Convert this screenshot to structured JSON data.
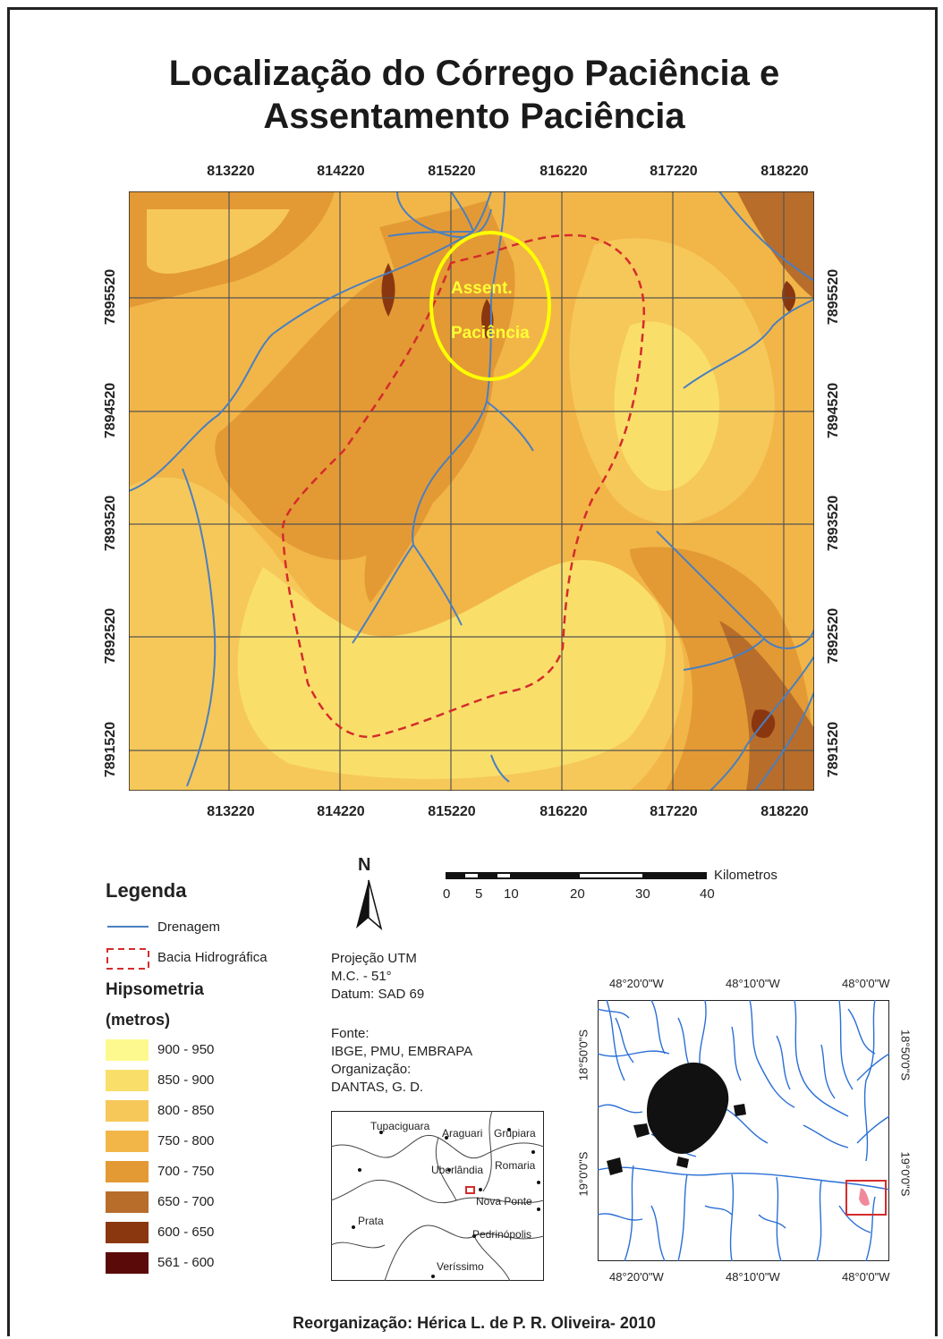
{
  "title_line1": "Localização do Córrego Paciência e",
  "title_line2": "Assentamento Paciência",
  "easting_labels": [
    "813220",
    "814220",
    "815220",
    "816220",
    "817220",
    "818220"
  ],
  "northing_labels": [
    "7895520",
    "7894520",
    "7893520",
    "7892520",
    "7891520"
  ],
  "map_labels": {
    "assent": "Assent.",
    "paciencia": "Paciência"
  },
  "north_arrow": {
    "letter": "N"
  },
  "scale_bar": {
    "unit": "Kilometros",
    "ticks": [
      "0",
      "5",
      "10",
      "20",
      "30",
      "40"
    ]
  },
  "legend": {
    "title": "Legenda",
    "drainage": "Drenagem",
    "basin": "Bacia Hidrográfica",
    "hyp_title": "Hipsometria",
    "hyp_unit": "(metros)",
    "classes": [
      {
        "label": "900 - 950",
        "color": "#fdf98e"
      },
      {
        "label": "850 - 900",
        "color": "#f9df6a"
      },
      {
        "label": "800 - 850",
        "color": "#f6c859"
      },
      {
        "label": "750 - 800",
        "color": "#f2b648"
      },
      {
        "label": "700 - 750",
        "color": "#e39a34"
      },
      {
        "label": "650 - 700",
        "color": "#b86d2a"
      },
      {
        "label": "600 - 650",
        "color": "#8a3710"
      },
      {
        "label": "561 - 600",
        "color": "#5a0a08"
      }
    ]
  },
  "projection": {
    "line1": "Projeção UTM",
    "line2": "M.C. - 51°",
    "line3": "Datum: SAD 69"
  },
  "source": {
    "label": "Fonte:",
    "value": "IBGE, PMU, EMBRAPA",
    "org_label": "Organização:",
    "org_value": "DANTAS, G. D."
  },
  "region_map": {
    "cities": [
      "Tupaciguara",
      "Araguari",
      "Grupiara",
      "Uberlândia",
      "Romaria",
      "Nova Ponte",
      "Prata",
      "Pedrinópolis",
      "Veríssimo"
    ]
  },
  "inset_map": {
    "lon_labels": [
      "48°20'0\"W",
      "48°10'0\"W",
      "48°0'0\"W"
    ],
    "lat_labels": [
      "18°50'0\"S",
      "19°0'0\"S"
    ]
  },
  "credit": "Reorganização: Hérica L. de P. R. Oliveira- 2010",
  "colors": {
    "drainage": "#4a7fc0",
    "basin": "#d42c2c",
    "highlight": "#ffff00"
  }
}
